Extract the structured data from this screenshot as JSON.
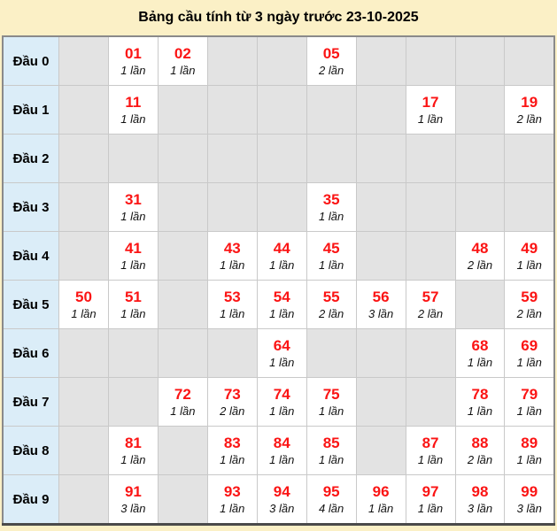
{
  "title": "Bảng cầu tính từ 3 ngày trước 23-10-2025",
  "colors": {
    "page_bg": "#fbf0c6",
    "label_bg": "#dbedf8",
    "empty_bg": "#e3e3e3",
    "filled_bg": "#ffffff",
    "number_red": "#fb1414",
    "outer_border": "#8a8a8a",
    "inner_border": "#c9c9c9"
  },
  "table": {
    "rows": [
      {
        "label": "Đầu 0",
        "cells": [
          null,
          {
            "number": "01",
            "count": "1 lần"
          },
          {
            "number": "02",
            "count": "1 lần"
          },
          null,
          null,
          {
            "number": "05",
            "count": "2 lần"
          },
          null,
          null,
          null,
          null
        ]
      },
      {
        "label": "Đầu 1",
        "cells": [
          null,
          {
            "number": "11",
            "count": "1 lần"
          },
          null,
          null,
          null,
          null,
          null,
          {
            "number": "17",
            "count": "1 lần"
          },
          null,
          {
            "number": "19",
            "count": "2 lần"
          }
        ]
      },
      {
        "label": "Đầu 2",
        "cells": [
          null,
          null,
          null,
          null,
          null,
          null,
          null,
          null,
          null,
          null
        ]
      },
      {
        "label": "Đầu 3",
        "cells": [
          null,
          {
            "number": "31",
            "count": "1 lần"
          },
          null,
          null,
          null,
          {
            "number": "35",
            "count": "1 lần"
          },
          null,
          null,
          null,
          null
        ]
      },
      {
        "label": "Đầu 4",
        "cells": [
          null,
          {
            "number": "41",
            "count": "1 lần"
          },
          null,
          {
            "number": "43",
            "count": "1 lần"
          },
          {
            "number": "44",
            "count": "1 lần"
          },
          {
            "number": "45",
            "count": "1 lần"
          },
          null,
          null,
          {
            "number": "48",
            "count": "2 lần"
          },
          {
            "number": "49",
            "count": "1 lần"
          }
        ]
      },
      {
        "label": "Đầu 5",
        "cells": [
          {
            "number": "50",
            "count": "1 lần"
          },
          {
            "number": "51",
            "count": "1 lần"
          },
          null,
          {
            "number": "53",
            "count": "1 lần"
          },
          {
            "number": "54",
            "count": "1 lần"
          },
          {
            "number": "55",
            "count": "2 lần"
          },
          {
            "number": "56",
            "count": "3 lần"
          },
          {
            "number": "57",
            "count": "2 lần"
          },
          null,
          {
            "number": "59",
            "count": "2 lần"
          }
        ]
      },
      {
        "label": "Đầu 6",
        "cells": [
          null,
          null,
          null,
          null,
          {
            "number": "64",
            "count": "1 lần"
          },
          null,
          null,
          null,
          {
            "number": "68",
            "count": "1 lần"
          },
          {
            "number": "69",
            "count": "1 lần"
          }
        ]
      },
      {
        "label": "Đầu 7",
        "cells": [
          null,
          null,
          {
            "number": "72",
            "count": "1 lần"
          },
          {
            "number": "73",
            "count": "2 lần"
          },
          {
            "number": "74",
            "count": "1 lần"
          },
          {
            "number": "75",
            "count": "1 lần"
          },
          null,
          null,
          {
            "number": "78",
            "count": "1 lần"
          },
          {
            "number": "79",
            "count": "1 lần"
          }
        ]
      },
      {
        "label": "Đầu 8",
        "cells": [
          null,
          {
            "number": "81",
            "count": "1 lần"
          },
          null,
          {
            "number": "83",
            "count": "1 lần"
          },
          {
            "number": "84",
            "count": "1 lần"
          },
          {
            "number": "85",
            "count": "1 lần"
          },
          null,
          {
            "number": "87",
            "count": "1 lần"
          },
          {
            "number": "88",
            "count": "2 lần"
          },
          {
            "number": "89",
            "count": "1 lần"
          }
        ]
      },
      {
        "label": "Đầu 9",
        "cells": [
          null,
          {
            "number": "91",
            "count": "3 lần"
          },
          null,
          {
            "number": "93",
            "count": "1 lần"
          },
          {
            "number": "94",
            "count": "3 lần"
          },
          {
            "number": "95",
            "count": "4 lần"
          },
          {
            "number": "96",
            "count": "1 lần"
          },
          {
            "number": "97",
            "count": "1 lần"
          },
          {
            "number": "98",
            "count": "3 lần"
          },
          {
            "number": "99",
            "count": "3 lần"
          }
        ]
      }
    ]
  }
}
